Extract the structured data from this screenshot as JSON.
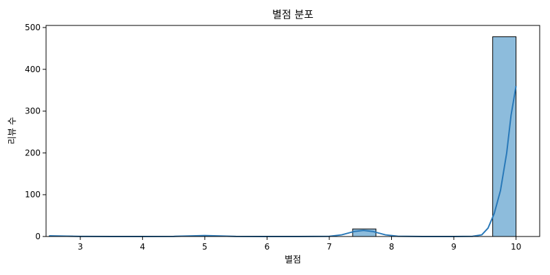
{
  "chart_data": {
    "type": "bar",
    "title": "별점 분포",
    "xlabel": "별점",
    "ylabel": "리뷰 수",
    "xlim": [
      2.45,
      10.38
    ],
    "ylim": [
      0,
      505
    ],
    "xticks": [
      3,
      4,
      5,
      6,
      7,
      8,
      9,
      10
    ],
    "yticks": [
      0,
      100,
      200,
      300,
      400,
      500
    ],
    "grid": false,
    "series": [
      {
        "kind": "histogram",
        "bar_color": "#8dbcdc",
        "edge_color": "#000000",
        "bins": [
          {
            "x0": 2.5,
            "x1": 2.875,
            "count": 1
          },
          {
            "x0": 4.75,
            "x1": 5.125,
            "count": 1
          },
          {
            "x0": 7.375,
            "x1": 7.75,
            "count": 18
          },
          {
            "x0": 9.625,
            "x1": 10.0,
            "count": 478
          }
        ]
      },
      {
        "kind": "kde",
        "line_color": "#2878b8",
        "points": [
          [
            2.5,
            1.6
          ],
          [
            3.0,
            0.3
          ],
          [
            3.5,
            0
          ],
          [
            4.0,
            0
          ],
          [
            4.5,
            0.3
          ],
          [
            4.8,
            1.5
          ],
          [
            5.0,
            2.2
          ],
          [
            5.2,
            1.5
          ],
          [
            5.5,
            0.3
          ],
          [
            6.0,
            0
          ],
          [
            6.5,
            0
          ],
          [
            7.0,
            0.4
          ],
          [
            7.2,
            4
          ],
          [
            7.4,
            12
          ],
          [
            7.55,
            14.5
          ],
          [
            7.7,
            12
          ],
          [
            7.9,
            4
          ],
          [
            8.1,
            0.6
          ],
          [
            8.5,
            0
          ],
          [
            9.0,
            0
          ],
          [
            9.3,
            0.5
          ],
          [
            9.45,
            4
          ],
          [
            9.55,
            20
          ],
          [
            9.65,
            55
          ],
          [
            9.75,
            110
          ],
          [
            9.85,
            200
          ],
          [
            9.92,
            290
          ],
          [
            10.0,
            360
          ]
        ]
      }
    ]
  }
}
